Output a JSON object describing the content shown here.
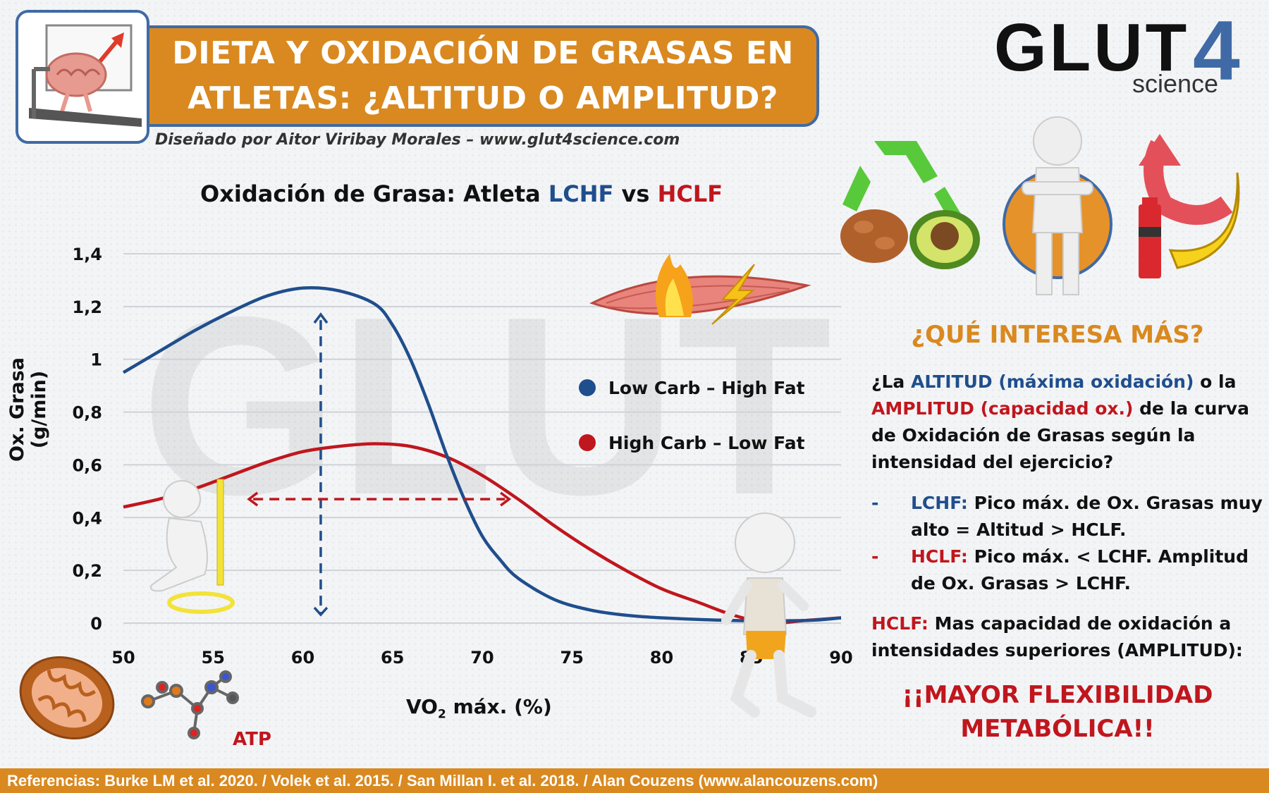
{
  "header": {
    "title_line1": "DIETA Y OXIDACIÓN DE GRASAS EN",
    "title_line2": "ATLETAS: ¿ALTITUD O AMPLITUD?",
    "credit": "Diseñado por Aitor Viribay Morales – www.glut4science.com",
    "brand_main": "GLUT",
    "brand_num": "4",
    "brand_sub": "science"
  },
  "chart_data": {
    "type": "line",
    "title_prefix": "Oxidación de Grasa: Atleta ",
    "title_lchf": "LCHF",
    "title_vs": " vs ",
    "title_hclf": "HCLF",
    "xlabel_main": "VO",
    "xlabel_sub": "2",
    "xlabel_rest": " máx. (%)",
    "ylabel": "Ox. Grasa (g/min)",
    "xlim": [
      50,
      90
    ],
    "ylim": [
      0,
      1.4
    ],
    "x_ticks": [
      "50",
      "55",
      "60",
      "65",
      "70",
      "75",
      "80",
      "85",
      "90"
    ],
    "y_ticks": [
      "0",
      "0,2",
      "0,4",
      "0,6",
      "0,8",
      "1",
      "1,2",
      "1,4"
    ],
    "grid": true,
    "legend_position": "right",
    "series": [
      {
        "name": "Low Carb – High Fat",
        "color": "#1f4e8c",
        "x": [
          50,
          52,
          54,
          56,
          58,
          60,
          62,
          64,
          65,
          66,
          67,
          68,
          69,
          70,
          71,
          72,
          74,
          76,
          78,
          80,
          84,
          88,
          90
        ],
        "y": [
          0.95,
          1.03,
          1.11,
          1.18,
          1.24,
          1.27,
          1.26,
          1.21,
          1.13,
          1.0,
          0.83,
          0.64,
          0.47,
          0.33,
          0.24,
          0.17,
          0.09,
          0.05,
          0.03,
          0.02,
          0.01,
          0.01,
          0.02
        ]
      },
      {
        "name": "High Carb – Low Fat",
        "color": "#c0161d",
        "x": [
          50,
          52,
          54,
          56,
          58,
          60,
          62,
          64,
          66,
          68,
          70,
          72,
          74,
          76,
          78,
          80,
          82,
          84,
          86,
          88,
          90
        ],
        "y": [
          0.44,
          0.47,
          0.51,
          0.56,
          0.61,
          0.65,
          0.67,
          0.68,
          0.67,
          0.63,
          0.56,
          0.47,
          0.37,
          0.28,
          0.2,
          0.13,
          0.08,
          0.03,
          0.0,
          0.01,
          0.02
        ]
      }
    ],
    "annotations": {
      "altitude_arrow": {
        "x": 61,
        "y_from": 0.0,
        "y_to": 1.17
      },
      "amplitude_arrow": {
        "y": 0.47,
        "x_from": 57,
        "x_to": 71.5
      }
    }
  },
  "icons": {
    "atp_label": "ATP"
  },
  "panel": {
    "question_title": "¿QUÉ INTERESA MÁS?",
    "q1": "¿La ",
    "q_altitud": "ALTITUD (máxima oxidación)",
    "q2": " o la ",
    "q_amplitud": "AMPLITUD (capacidad ox.)",
    "q3": " de la curva de Oxidación de Grasas según la intensidad del ejercicio?",
    "bullet1_dash": "-",
    "bullet1_label": "LCHF:",
    "bullet1_text": " Pico máx. de Ox. Grasas muy alto = Altitud > HCLF.",
    "bullet2_dash": "-",
    "bullet2_label": "HCLF:",
    "bullet2_text": " Pico máx. < LCHF. Amplitud de Ox. Grasas > LCHF.",
    "summary_label": "HCLF:",
    "summary_text": " Mas capacidad de oxidación a intensidades superiores (AMPLITUD):",
    "conclusion_line1": "¡¡MAYOR FLEXIBILIDAD",
    "conclusion_line2": "METABÓLICA!!"
  },
  "footer": {
    "references": "Referencias: Burke LM et al. 2020. / Volek et al. 2015. / San Millan I. et al. 2018. / Alan Couzens (www.alancouzens.com)"
  },
  "colors": {
    "orange": "#d9891f",
    "blue": "#1f4e8c",
    "red": "#c0161d",
    "frame_blue": "#3f6aa5"
  }
}
